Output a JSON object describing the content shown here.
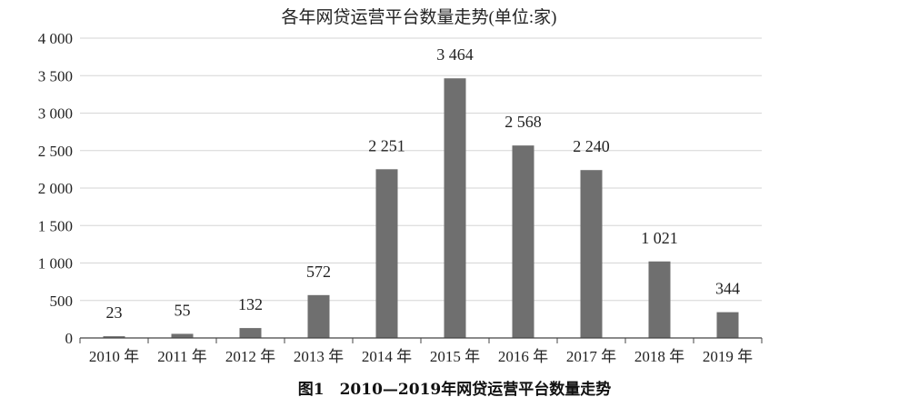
{
  "chart_data": {
    "type": "bar",
    "title": "各年网贷运营平台数量走势(单位:家)",
    "categories": [
      "2010 年",
      "2011 年",
      "2012 年",
      "2013 年",
      "2014 年",
      "2015 年",
      "2016 年",
      "2017 年",
      "2018 年",
      "2019 年"
    ],
    "values": [
      23,
      55,
      132,
      572,
      2251,
      3464,
      2568,
      2240,
      1021,
      344
    ],
    "value_labels": [
      "23",
      "55",
      "132",
      "572",
      "2 251",
      "3 464",
      "2 568",
      "2 240",
      "1 021",
      "344"
    ],
    "ylim": [
      0,
      4000
    ],
    "yticks": [
      0,
      500,
      1000,
      1500,
      2000,
      2500,
      3000,
      3500,
      4000
    ],
    "ytick_labels": [
      "0",
      "500",
      "1 000",
      "1 500",
      "2 000",
      "2 500",
      "3 000",
      "3 500",
      "4 000"
    ],
    "grid": true,
    "legend": "none",
    "bar_color": "#6f6f6f"
  },
  "caption": "图1　2010—2019年网贷运营平台数量走势"
}
